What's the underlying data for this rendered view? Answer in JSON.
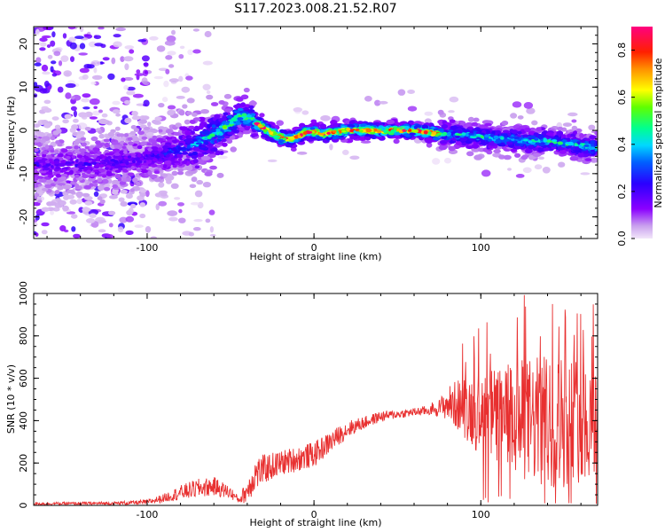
{
  "title": "S117.2023.008.21.52.R07",
  "chart_data": [
    {
      "type": "heatmap",
      "name": "spectrogram",
      "xlabel": "Height of straight line (km)",
      "ylabel": "Frequency (Hz)",
      "xlim": [
        -168,
        170
      ],
      "ylim": [
        -25,
        24
      ],
      "xticks": [
        -100,
        0,
        100
      ],
      "xtick_labels": [
        "-100",
        "0",
        "100"
      ],
      "yticks": [
        -20,
        -10,
        0,
        10,
        20
      ],
      "ytick_labels": [
        "-20",
        "-10",
        "0",
        "10",
        "20"
      ],
      "colorbar": {
        "label": "Normalized spectral amplitude",
        "range": [
          0.0,
          0.9
        ],
        "ticks": [
          0.0,
          0.2,
          0.4,
          0.6,
          0.8
        ],
        "tick_labels": [
          "0.0",
          "0.2",
          "0.4",
          "0.6",
          "0.8"
        ],
        "colormap": [
          "#e8d6f4",
          "#8b00ff",
          "#2000ff",
          "#00c8ff",
          "#00ff80",
          "#ffff00",
          "#ff8000",
          "#ff0000",
          "#ff0080"
        ]
      },
      "ridge": {
        "x": [
          -168,
          -140,
          -110,
          -95,
          -85,
          -70,
          -60,
          -50,
          -44,
          -38,
          -32,
          -26,
          -20,
          -15,
          -10,
          -5,
          0,
          5,
          10,
          20,
          40,
          60,
          70,
          80,
          90,
          100,
          110,
          120,
          130,
          140,
          150,
          160,
          170
        ],
        "frequency": [
          -8,
          -8,
          -7,
          -6,
          -5,
          -3,
          -1,
          1.5,
          3.5,
          2.5,
          1,
          -0.5,
          -1.5,
          -2,
          -1.5,
          -0.5,
          -0.3,
          -1,
          -0.5,
          0,
          0,
          0,
          -0.5,
          -1,
          -1,
          -1.5,
          -2,
          -2,
          -2.5,
          -2.5,
          -3,
          -3.5,
          -4
        ]
      }
    },
    {
      "type": "line",
      "name": "snr",
      "xlabel": "Height of straight line (km)",
      "ylabel": "SNR (10 * v/v)",
      "xlim": [
        -168,
        170
      ],
      "ylim": [
        0,
        1000
      ],
      "xticks": [
        -100,
        0,
        100
      ],
      "xtick_labels": [
        "-100",
        "0",
        "100"
      ],
      "yticks": [
        0,
        200,
        400,
        600,
        800,
        1000
      ],
      "ytick_labels": [
        "0",
        "200",
        "400",
        "600",
        "800",
        "1000"
      ],
      "line_color": "#e83030",
      "envelope": {
        "x": [
          -168,
          -120,
          -100,
          -90,
          -80,
          -70,
          -60,
          -50,
          -45,
          -40,
          -35,
          -30,
          -20,
          -10,
          0,
          10,
          20,
          30,
          40,
          50,
          60,
          70,
          75,
          80,
          90,
          100,
          110,
          120,
          130,
          140,
          150,
          160,
          170
        ],
        "mean": [
          8,
          10,
          15,
          35,
          60,
          80,
          90,
          60,
          25,
          70,
          150,
          170,
          200,
          220,
          240,
          300,
          360,
          390,
          420,
          430,
          440,
          450,
          460,
          480,
          470,
          430,
          420,
          400,
          400,
          390,
          400,
          410,
          400
        ],
        "spread": [
          6,
          8,
          12,
          20,
          35,
          45,
          45,
          30,
          15,
          60,
          80,
          70,
          60,
          60,
          60,
          50,
          40,
          30,
          25,
          20,
          20,
          25,
          40,
          80,
          150,
          200,
          240,
          280,
          300,
          320,
          320,
          300,
          280
        ]
      }
    }
  ]
}
